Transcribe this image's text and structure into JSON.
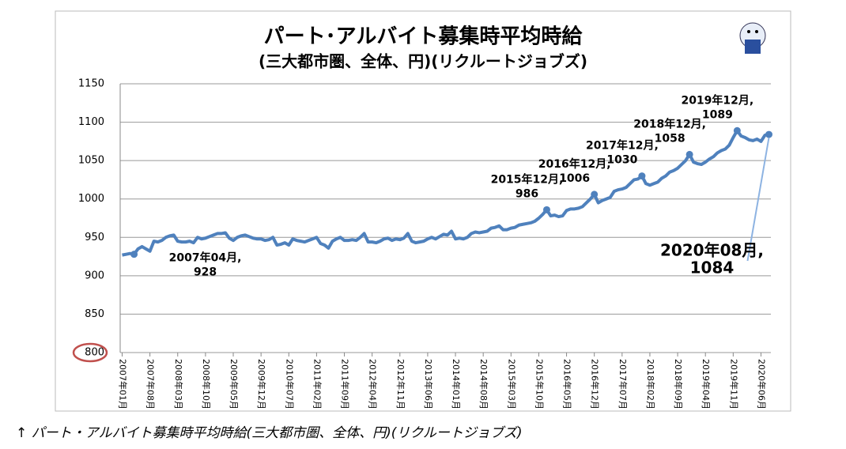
{
  "chart_data": {
    "type": "line",
    "title": "パート･アルバイト募集時平均時給",
    "subtitle": "(三大都市圏、全体、円)(リクルートジョブズ)",
    "caption": "↑ パート・アルバイト募集時平均時給(三大都市圏、全体、円)(リクルートジョブズ)",
    "categories": [
      "2007年01月",
      null,
      null,
      null,
      null,
      null,
      null,
      "2007年08月",
      null,
      null,
      null,
      null,
      null,
      null,
      "2008年03月",
      null,
      null,
      null,
      null,
      null,
      null,
      "2008年10月",
      null,
      null,
      null,
      null,
      null,
      null,
      "2009年05月",
      null,
      null,
      null,
      null,
      null,
      null,
      "2009年12月",
      null,
      null,
      null,
      null,
      null,
      null,
      "2010年07月",
      null,
      null,
      null,
      null,
      null,
      null,
      "2011年02月",
      null,
      null,
      null,
      null,
      null,
      null,
      "2011年09月",
      null,
      null,
      null,
      null,
      null,
      null,
      "2012年04月",
      null,
      null,
      null,
      null,
      null,
      null,
      "2012年11月",
      null,
      null,
      null,
      null,
      null,
      null,
      "2013年06月",
      null,
      null,
      null,
      null,
      null,
      null,
      "2014年01月",
      null,
      null,
      null,
      null,
      null,
      null,
      "2014年08月",
      null,
      null,
      null,
      null,
      null,
      null,
      "2015年03月",
      null,
      null,
      null,
      null,
      null,
      null,
      "2015年10月",
      null,
      null,
      null,
      null,
      null,
      null,
      "2016年05月",
      null,
      null,
      null,
      null,
      null,
      null,
      "2016年12月",
      null,
      null,
      null,
      null,
      null,
      null,
      "2017年07月",
      null,
      null,
      null,
      null,
      null,
      null,
      "2018年02月",
      null,
      null,
      null,
      null,
      null,
      null,
      "2018年09月",
      null,
      null,
      null,
      null,
      null,
      null,
      "2019年04月",
      null,
      null,
      null,
      null,
      null,
      null,
      "2019年11月",
      null,
      null,
      null,
      null,
      null,
      null,
      "2020年06月",
      null,
      null
    ],
    "series": [
      {
        "name": "時給",
        "color": "#4f81bd",
        "values": [
          927,
          928,
          929,
          928,
          935,
          938,
          935,
          932,
          945,
          944,
          946,
          950,
          952,
          953,
          945,
          944,
          944,
          945,
          943,
          950,
          948,
          949,
          951,
          953,
          955,
          955,
          956,
          949,
          946,
          950,
          952,
          953,
          951,
          949,
          948,
          948,
          946,
          947,
          950,
          940,
          941,
          943,
          940,
          948,
          946,
          945,
          944,
          946,
          948,
          950,
          942,
          940,
          936,
          945,
          948,
          950,
          946,
          946,
          947,
          946,
          950,
          955,
          944,
          944,
          943,
          945,
          948,
          949,
          946,
          948,
          947,
          949,
          955,
          945,
          943,
          944,
          945,
          948,
          950,
          948,
          951,
          954,
          953,
          958,
          948,
          949,
          948,
          950,
          955,
          957,
          956,
          957,
          958,
          962,
          963,
          965,
          960,
          960,
          962,
          963,
          966,
          967,
          968,
          969,
          971,
          975,
          980,
          986,
          978,
          979,
          977,
          978,
          985,
          987,
          987,
          988,
          990,
          995,
          1000,
          1006,
          995,
          998,
          1000,
          1002,
          1010,
          1012,
          1013,
          1015,
          1020,
          1025,
          1026,
          1030,
          1020,
          1018,
          1020,
          1022,
          1027,
          1030,
          1035,
          1037,
          1040,
          1045,
          1050,
          1058,
          1048,
          1046,
          1045,
          1048,
          1052,
          1055,
          1060,
          1063,
          1065,
          1070,
          1080,
          1089,
          1082,
          1080,
          1077,
          1076,
          1078,
          1075,
          1083,
          1084
        ]
      }
    ],
    "annotations": [
      {
        "label": "2007年04月,",
        "at": 3
      },
      {
        "label": "2015年12月,",
        "at": 107
      },
      {
        "label": "2016年12月,",
        "at": 119
      },
      {
        "label": "2017年12月,",
        "at": 131
      },
      {
        "label": "2018年12月,",
        "at": 143
      },
      {
        "label": "2019年12月,",
        "at": 155
      },
      {
        "label": "2020年08月,",
        "at": 163
      }
    ],
    "ylim": [
      800,
      1150
    ],
    "yticks": [
      800,
      850,
      900,
      950,
      1000,
      1050,
      1100,
      1150
    ],
    "grid": true
  }
}
